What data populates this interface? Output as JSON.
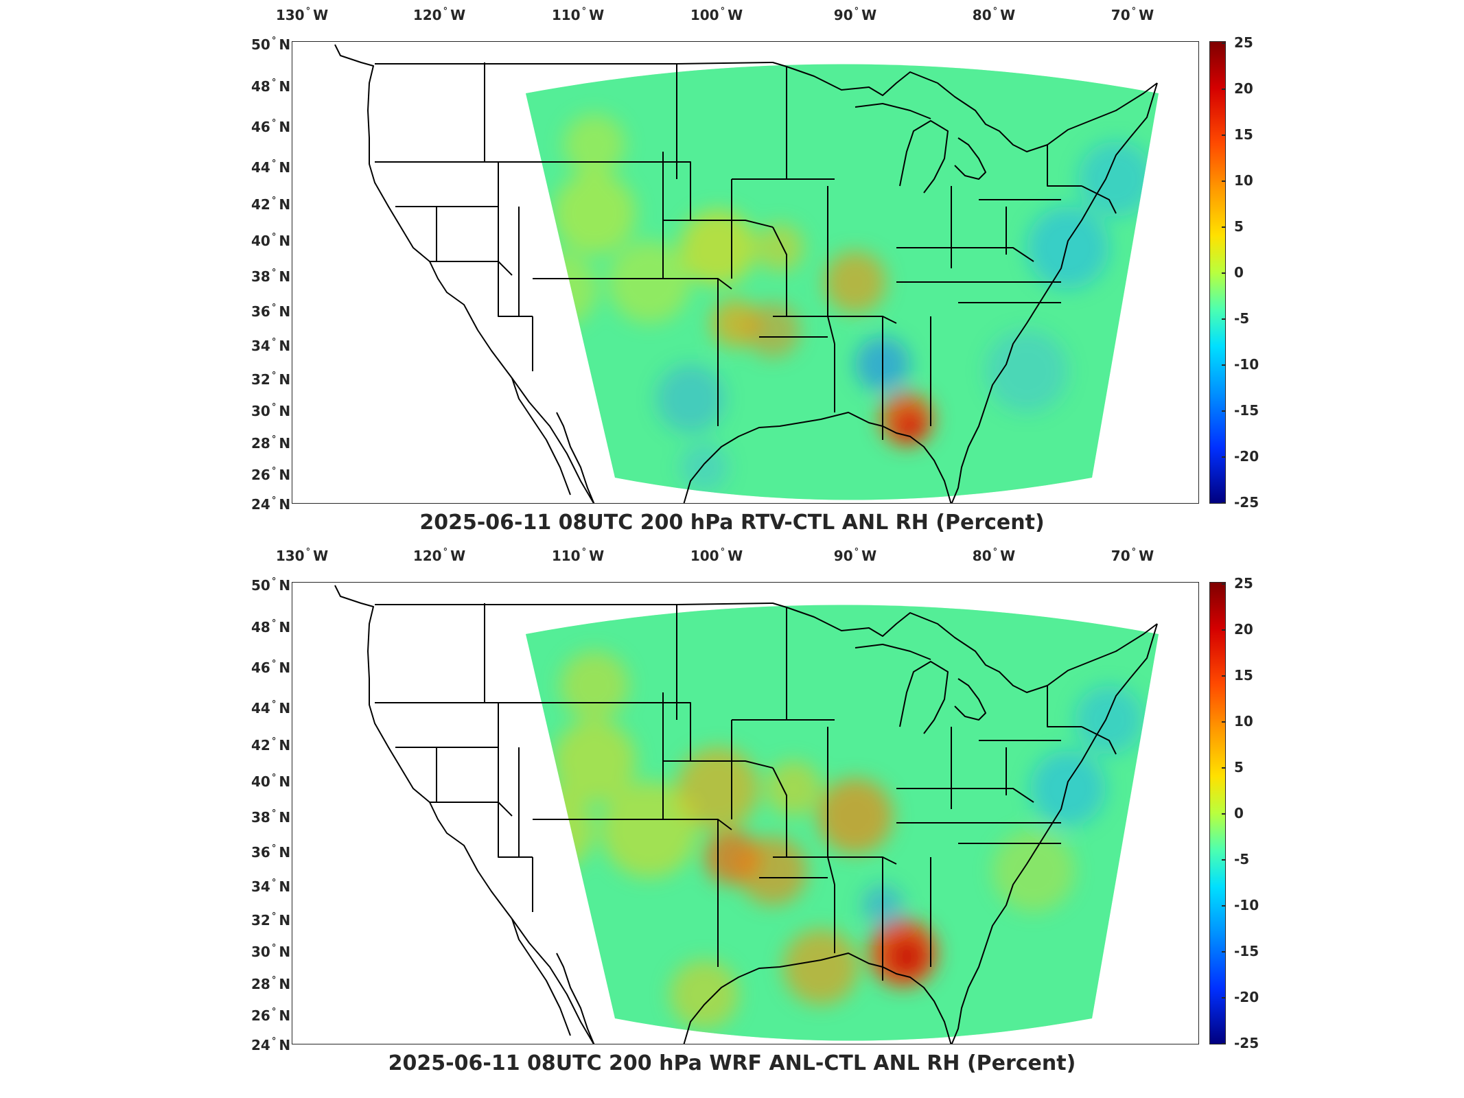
{
  "panels": [
    {
      "title": "2025-06-11 08UTC 200 hPa RTV-CTL ANL RH (Percent)",
      "lon_labels": [
        "130",
        "120",
        "110",
        "100",
        "90",
        "80",
        "70"
      ],
      "lat_labels": [
        "50",
        "48",
        "46",
        "44",
        "42",
        "40",
        "38",
        "36",
        "34",
        "32",
        "30",
        "28",
        "26",
        "24"
      ],
      "colorbar_ticks": [
        "25",
        "20",
        "15",
        "10",
        "5",
        "0",
        "-5",
        "-10",
        "-15",
        "-20",
        "-25"
      ]
    },
    {
      "title": "2025-06-11 08UTC 200 hPa WRF ANL-CTL ANL RH (Percent)",
      "lon_labels": [
        "130",
        "120",
        "110",
        "100",
        "90",
        "80",
        "70"
      ],
      "lat_labels": [
        "50",
        "48",
        "46",
        "44",
        "42",
        "40",
        "38",
        "36",
        "34",
        "32",
        "30",
        "28",
        "26",
        "24"
      ],
      "colorbar_ticks": [
        "25",
        "20",
        "15",
        "10",
        "5",
        "0",
        "-5",
        "-10",
        "-15",
        "-20",
        "-25"
      ]
    }
  ],
  "hemisphere": {
    "lon": "W",
    "lat": "N"
  },
  "degree_symbol": "°",
  "colormap": {
    "name": "jet",
    "min": -25,
    "max": 25
  }
}
